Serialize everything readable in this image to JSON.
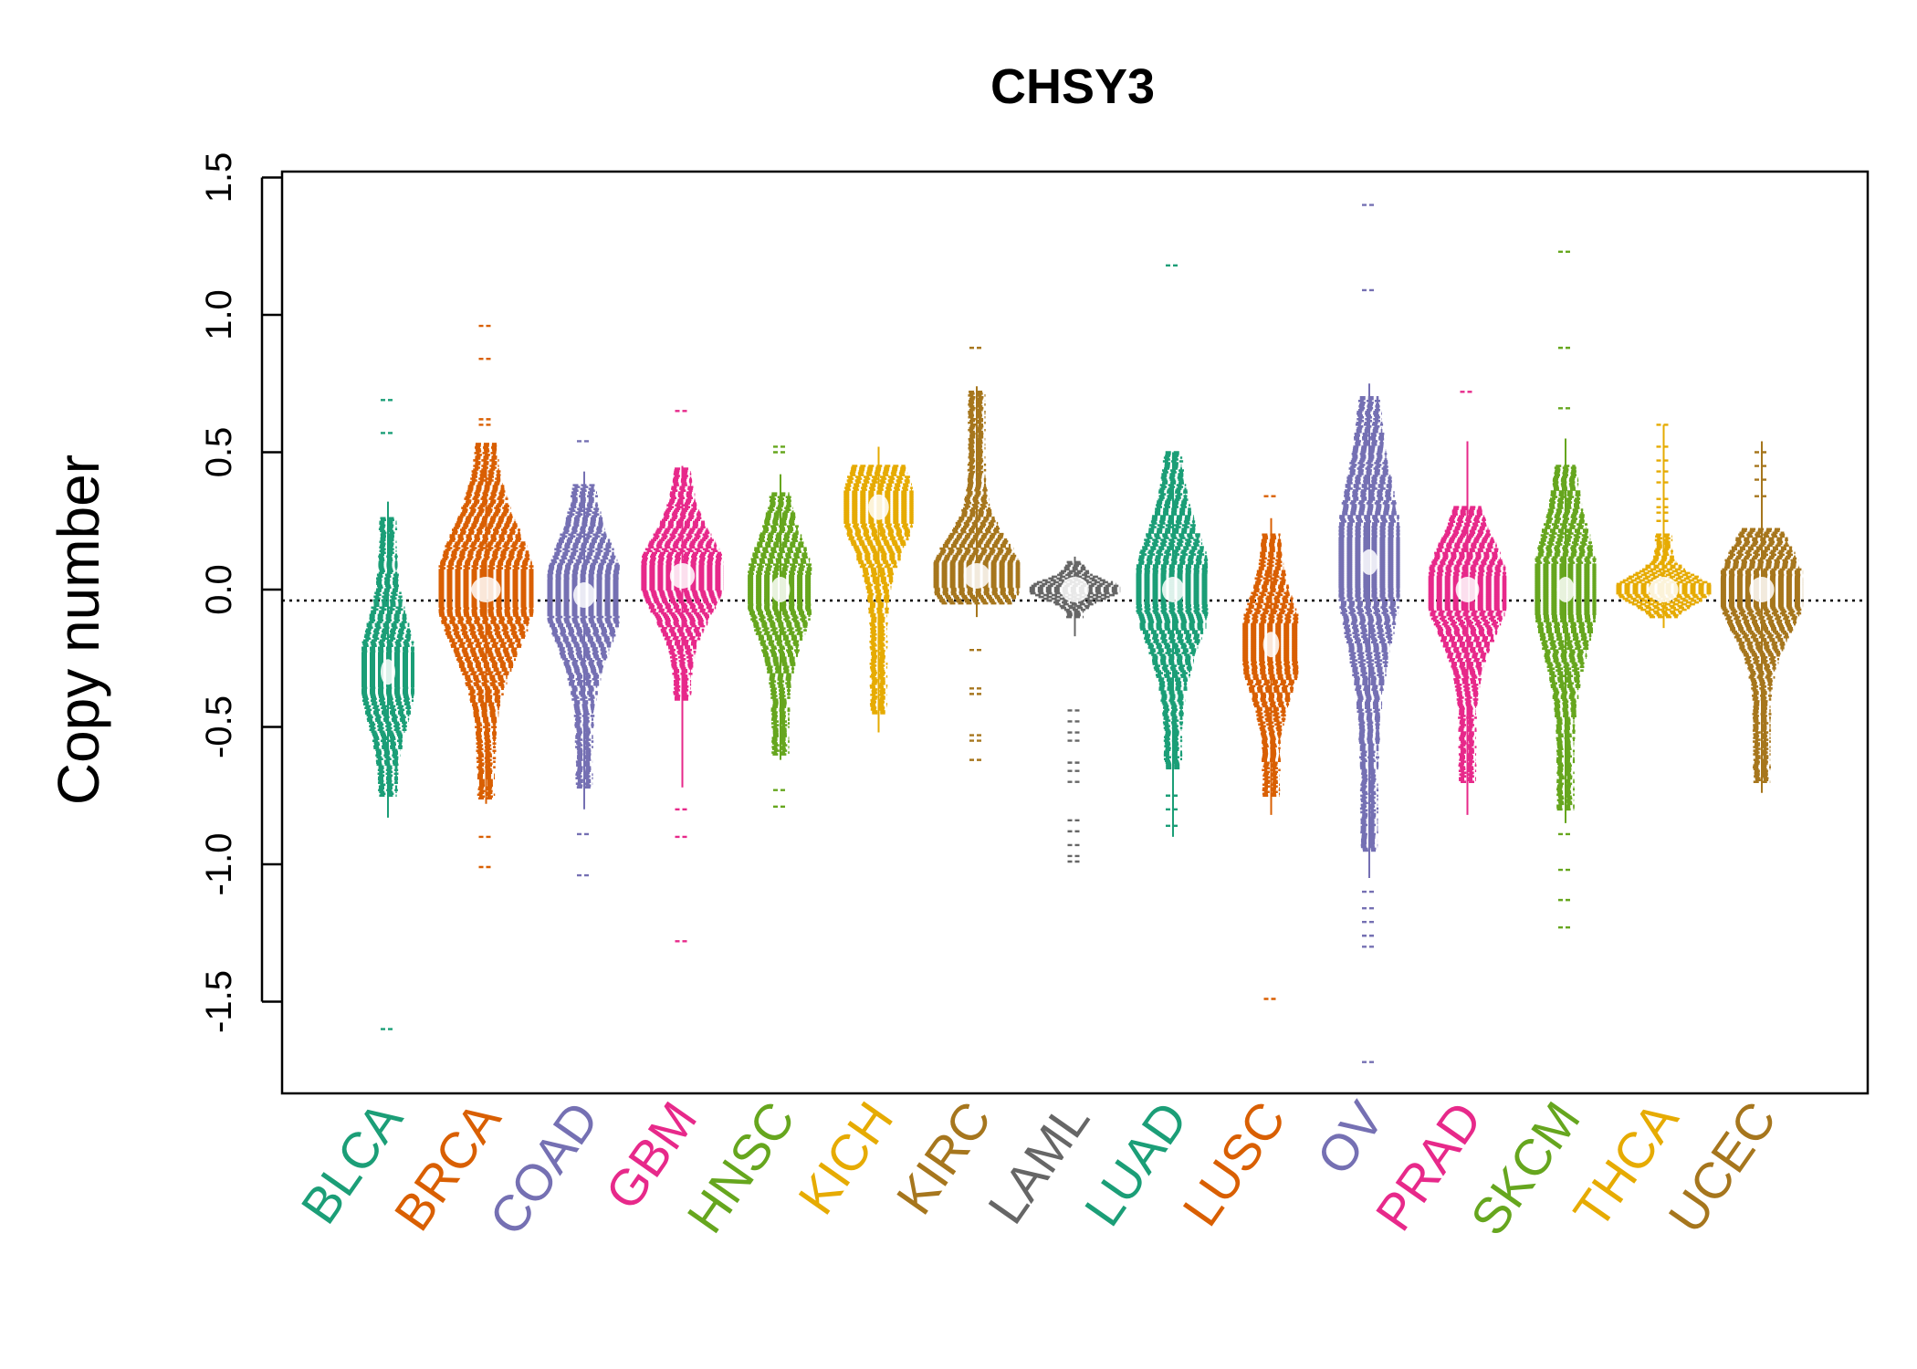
{
  "chart_data": {
    "type": "beeswarm",
    "title": "CHSY3",
    "ylabel": "Copy number",
    "ylim": [
      -1.85,
      1.5
    ],
    "yticks": [
      -1.5,
      -1.0,
      -0.5,
      0.0,
      0.5,
      1.0,
      1.5
    ],
    "ytick_labels": [
      "-1.5",
      "-1.0",
      "-0.5",
      "0.0",
      "0.5",
      "1.0",
      "1.5"
    ],
    "reference_line": -0.04,
    "categories": [
      "BLCA",
      "BRCA",
      "COAD",
      "GBM",
      "HNSC",
      "KICH",
      "KIRC",
      "LAML",
      "LUAD",
      "LUSC",
      "OV",
      "PRAD",
      "SKCM",
      "THCA",
      "UCEC"
    ],
    "colors": [
      "#1b9e77",
      "#d95f02",
      "#7570b3",
      "#e7298a",
      "#66a61e",
      "#e6ab02",
      "#a6761d",
      "#666666",
      "#1b9e77",
      "#d95f02",
      "#7570b3",
      "#e7298a",
      "#66a61e",
      "#e6ab02",
      "#a6761d"
    ],
    "series": [
      {
        "min": -0.83,
        "max": 0.32,
        "core_low": -0.75,
        "core_high": 0.26,
        "center": -0.3,
        "peak_width": 0.5,
        "outliers": [
          0.69,
          0.57,
          -1.6
        ]
      },
      {
        "min": -0.78,
        "max": 0.53,
        "core_low": -0.76,
        "core_high": 0.53,
        "center": 0.0,
        "peak_width": 1.0,
        "outliers": [
          0.96,
          0.84,
          0.62,
          0.6,
          -0.9,
          -1.01
        ]
      },
      {
        "min": -0.8,
        "max": 0.43,
        "core_low": -0.72,
        "core_high": 0.38,
        "center": -0.02,
        "peak_width": 0.75,
        "outliers": [
          0.54,
          -0.89,
          -1.04
        ]
      },
      {
        "min": -0.72,
        "max": 0.45,
        "core_low": -0.4,
        "core_high": 0.44,
        "center": 0.05,
        "peak_width": 0.85,
        "outliers": [
          0.65,
          -0.9,
          -1.28,
          -0.8
        ]
      },
      {
        "min": -0.62,
        "max": 0.42,
        "core_low": -0.6,
        "core_high": 0.35,
        "center": 0.0,
        "peak_width": 0.65,
        "outliers": [
          0.52,
          0.5,
          -0.73,
          -0.79
        ]
      },
      {
        "min": -0.52,
        "max": 0.52,
        "core_low": -0.45,
        "core_high": 0.45,
        "center": 0.3,
        "peak_width": 0.7,
        "outliers": []
      },
      {
        "min": -0.1,
        "max": 0.74,
        "core_low": -0.05,
        "core_high": 0.72,
        "center": 0.05,
        "peak_width": 0.9,
        "outliers": [
          0.88,
          -0.22,
          -0.36,
          -0.38,
          -0.53,
          -0.55,
          -0.62
        ]
      },
      {
        "min": -0.17,
        "max": 0.12,
        "core_low": -0.1,
        "core_high": 0.1,
        "center": 0.0,
        "peak_width": 0.95,
        "outliers": [
          -0.44,
          -0.48,
          -0.52,
          -0.55,
          -0.63,
          -0.66,
          -0.7,
          -0.84,
          -0.88,
          -0.93,
          -0.97,
          -0.99
        ]
      },
      {
        "min": -0.9,
        "max": 0.5,
        "core_low": -0.65,
        "core_high": 0.5,
        "center": 0.0,
        "peak_width": 0.75,
        "outliers": [
          1.18,
          -0.75,
          -0.8,
          -0.86
        ]
      },
      {
        "min": -0.82,
        "max": 0.26,
        "core_low": -0.75,
        "core_high": 0.2,
        "center": -0.2,
        "peak_width": 0.55,
        "outliers": [
          0.34,
          -1.49
        ]
      },
      {
        "min": -1.05,
        "max": 0.75,
        "core_low": -0.95,
        "core_high": 0.7,
        "center": 0.1,
        "peak_width": 0.6,
        "outliers": [
          1.4,
          1.09,
          -1.1,
          -1.16,
          -1.21,
          -1.26,
          -1.3,
          -1.72
        ]
      },
      {
        "min": -0.82,
        "max": 0.54,
        "core_low": -0.7,
        "core_high": 0.3,
        "center": 0.0,
        "peak_width": 0.8,
        "outliers": [
          0.72
        ]
      },
      {
        "min": -0.85,
        "max": 0.55,
        "core_low": -0.8,
        "core_high": 0.45,
        "center": 0.0,
        "peak_width": 0.6,
        "outliers": [
          1.23,
          0.88,
          0.66,
          -0.89,
          -1.02,
          -1.13,
          -1.23
        ]
      },
      {
        "min": -0.14,
        "max": 0.6,
        "core_low": -0.1,
        "core_high": 0.2,
        "center": 0.0,
        "peak_width": 1.0,
        "outliers": [
          0.6,
          0.52,
          0.47,
          0.43,
          0.39,
          0.33,
          0.3,
          0.28,
          0.25
        ]
      },
      {
        "min": -0.74,
        "max": 0.54,
        "core_low": -0.7,
        "core_high": 0.22,
        "center": 0.0,
        "peak_width": 0.85,
        "outliers": [
          0.5,
          0.45,
          0.4,
          0.34
        ]
      }
    ]
  }
}
